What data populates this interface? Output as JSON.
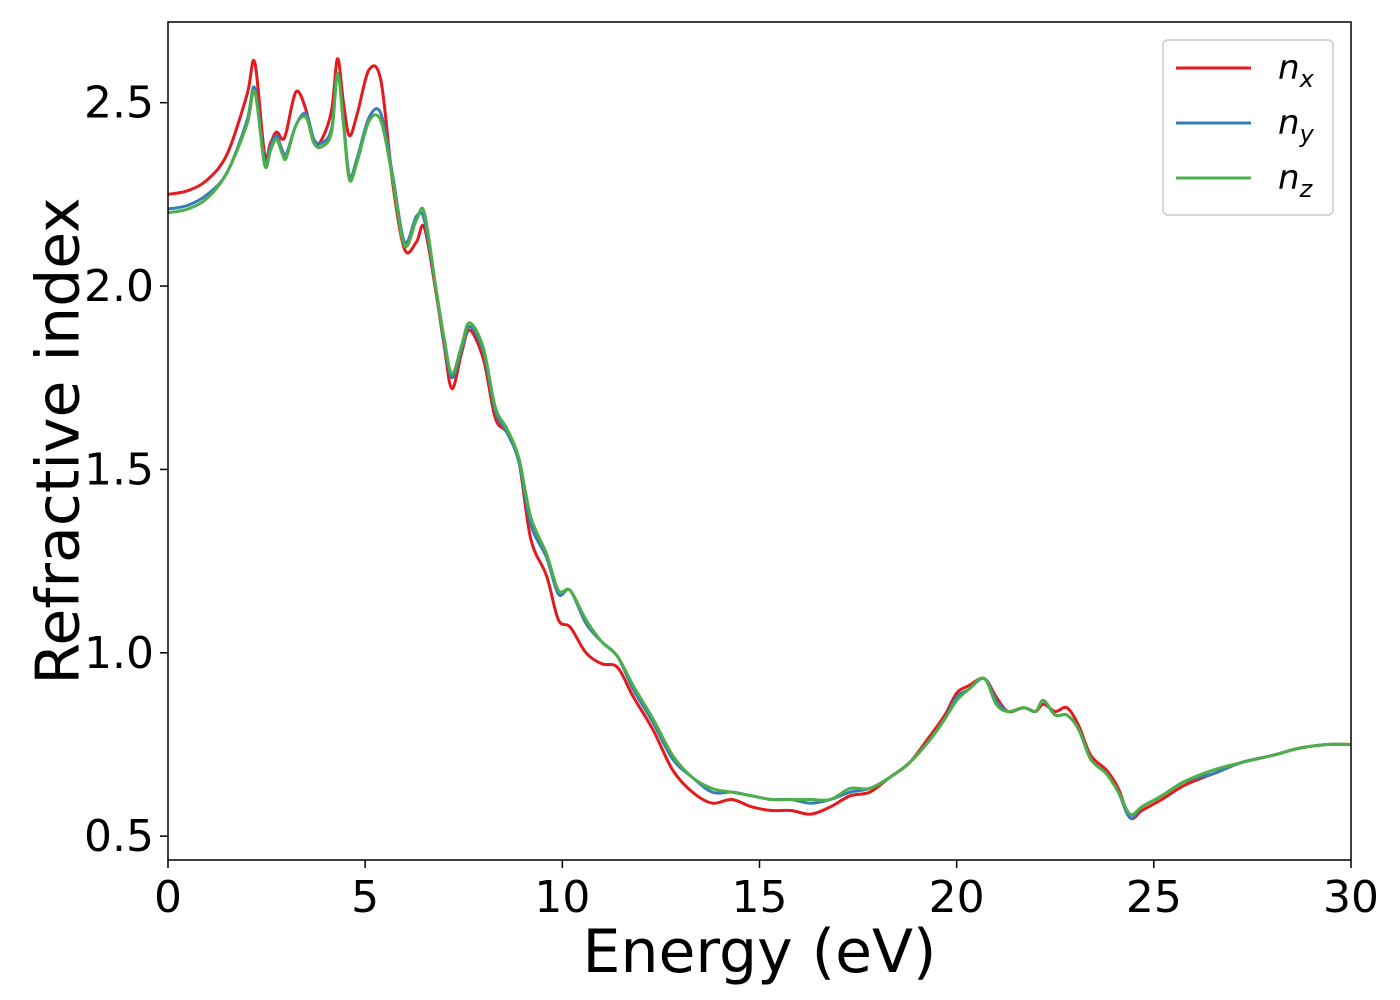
{
  "chart_data": {
    "type": "line",
    "title": "",
    "xlabel": "Energy (eV)",
    "ylabel": "Refractive index",
    "xlim": [
      0,
      30
    ],
    "ylim": [
      0.435,
      2.72
    ],
    "xticks": [
      0,
      5,
      10,
      15,
      20,
      25,
      30
    ],
    "yticks": [
      0.5,
      1.0,
      1.5,
      2.0,
      2.5
    ],
    "xtick_labels": [
      "0",
      "5",
      "10",
      "15",
      "20",
      "25",
      "30"
    ],
    "ytick_labels": [
      "0.5",
      "1.0",
      "1.5",
      "2.0",
      "2.5"
    ],
    "grid": false,
    "legend_position": "top-right",
    "x": [
      0,
      0.5,
      1.0,
      1.5,
      2.0,
      2.2,
      2.45,
      2.6,
      2.75,
      2.9,
      3.0,
      3.25,
      3.5,
      3.7,
      3.9,
      4.15,
      4.3,
      4.45,
      4.6,
      4.8,
      5.1,
      5.4,
      5.7,
      6.0,
      6.3,
      6.5,
      6.8,
      7.0,
      7.2,
      7.45,
      7.65,
      8.0,
      8.3,
      8.6,
      8.9,
      9.2,
      9.6,
      9.9,
      10.2,
      10.6,
      11.0,
      11.4,
      11.8,
      12.3,
      12.8,
      13.3,
      13.8,
      14.3,
      14.8,
      15.3,
      15.8,
      16.3,
      16.8,
      17.3,
      17.8,
      18.3,
      18.8,
      19.3,
      19.7,
      20.0,
      20.3,
      20.7,
      21.0,
      21.3,
      21.7,
      22.0,
      22.2,
      22.5,
      22.8,
      23.1,
      23.4,
      23.8,
      24.1,
      24.4,
      24.7,
      25.2,
      25.8,
      26.5,
      27.2,
      28.0,
      28.7,
      29.4,
      30.0
    ],
    "series": [
      {
        "name": "n",
        "name_subscript": "x",
        "color": "#e41a1c",
        "values": [
          2.25,
          2.26,
          2.29,
          2.36,
          2.52,
          2.61,
          2.36,
          2.39,
          2.42,
          2.4,
          2.42,
          2.53,
          2.48,
          2.39,
          2.4,
          2.48,
          2.62,
          2.5,
          2.41,
          2.47,
          2.59,
          2.56,
          2.28,
          2.1,
          2.12,
          2.16,
          1.98,
          1.84,
          1.72,
          1.82,
          1.88,
          1.8,
          1.64,
          1.6,
          1.52,
          1.31,
          1.21,
          1.09,
          1.07,
          1.0,
          0.97,
          0.96,
          0.88,
          0.79,
          0.68,
          0.62,
          0.59,
          0.6,
          0.58,
          0.57,
          0.57,
          0.56,
          0.58,
          0.61,
          0.62,
          0.66,
          0.7,
          0.77,
          0.83,
          0.89,
          0.91,
          0.93,
          0.88,
          0.84,
          0.85,
          0.84,
          0.86,
          0.84,
          0.85,
          0.8,
          0.72,
          0.68,
          0.63,
          0.55,
          0.57,
          0.6,
          0.64,
          0.67,
          0.7,
          0.72,
          0.74,
          0.75,
          0.75
        ]
      },
      {
        "name": "n",
        "name_subscript": "y",
        "color": "#377eb8",
        "values": [
          2.21,
          2.22,
          2.25,
          2.31,
          2.45,
          2.54,
          2.34,
          2.38,
          2.41,
          2.37,
          2.36,
          2.44,
          2.47,
          2.4,
          2.39,
          2.43,
          2.58,
          2.45,
          2.3,
          2.35,
          2.46,
          2.47,
          2.3,
          2.12,
          2.19,
          2.18,
          1.99,
          1.85,
          1.75,
          1.83,
          1.89,
          1.82,
          1.66,
          1.6,
          1.52,
          1.35,
          1.26,
          1.16,
          1.17,
          1.08,
          1.03,
          0.99,
          0.9,
          0.81,
          0.71,
          0.66,
          0.62,
          0.62,
          0.61,
          0.6,
          0.6,
          0.59,
          0.6,
          0.62,
          0.63,
          0.66,
          0.7,
          0.76,
          0.82,
          0.88,
          0.9,
          0.93,
          0.87,
          0.84,
          0.85,
          0.84,
          0.87,
          0.83,
          0.83,
          0.79,
          0.71,
          0.67,
          0.62,
          0.55,
          0.58,
          0.61,
          0.65,
          0.67,
          0.7,
          0.72,
          0.74,
          0.75,
          0.75
        ]
      },
      {
        "name": "n",
        "name_subscript": "z",
        "color": "#4daf4a",
        "values": [
          2.2,
          2.21,
          2.24,
          2.31,
          2.44,
          2.53,
          2.33,
          2.37,
          2.4,
          2.36,
          2.35,
          2.44,
          2.46,
          2.39,
          2.38,
          2.42,
          2.58,
          2.44,
          2.29,
          2.34,
          2.45,
          2.45,
          2.29,
          2.11,
          2.18,
          2.2,
          1.99,
          1.86,
          1.76,
          1.84,
          1.9,
          1.83,
          1.67,
          1.61,
          1.53,
          1.37,
          1.27,
          1.17,
          1.17,
          1.09,
          1.03,
          0.99,
          0.91,
          0.82,
          0.72,
          0.66,
          0.63,
          0.62,
          0.61,
          0.6,
          0.6,
          0.6,
          0.6,
          0.63,
          0.63,
          0.66,
          0.7,
          0.76,
          0.82,
          0.87,
          0.9,
          0.93,
          0.86,
          0.84,
          0.85,
          0.84,
          0.87,
          0.83,
          0.83,
          0.79,
          0.71,
          0.67,
          0.62,
          0.56,
          0.58,
          0.61,
          0.65,
          0.68,
          0.7,
          0.72,
          0.74,
          0.75,
          0.75
        ]
      }
    ]
  }
}
